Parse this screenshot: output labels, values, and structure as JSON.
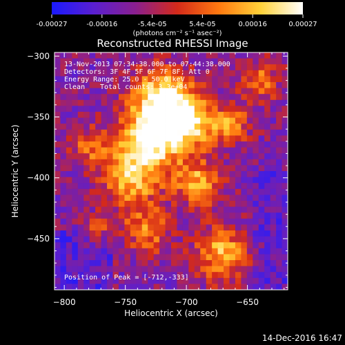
{
  "colorbar": {
    "ticks": [
      "-0.00027",
      "-0.00016",
      "-5.4e-05",
      "5.4e-05",
      "0.00016",
      "0.00027"
    ],
    "units": "(photons cm⁻² s⁻¹ asec⁻²)",
    "stops": [
      "#1a1aff",
      "#5a1fd0",
      "#8a1f8f",
      "#d42a1a",
      "#ff7a10",
      "#ffd23a",
      "#ffffff"
    ]
  },
  "title": "Reconstructed RHESSI Image",
  "info": {
    "time_range": "13-Nov-2013 07:34:38.000 to 07:44:38.000",
    "detectors": "Detectors: 3F 4F 5F 6F 7F 8F; Att 0",
    "energy": "Energy Range: 25.0 - 50.0 keV",
    "algorithm": "Clean",
    "counts": "Total counts: 3.3e+04",
    "peak": "Position of Peak = [-712,-333]"
  },
  "footer": {
    "date": "14-Dec-2016 16:47"
  },
  "chart_data": {
    "type": "heatmap",
    "title": "Reconstructed RHESSI Image",
    "xlabel": "Heliocentric X (arcsec)",
    "ylabel": "Heliocentric Y (arcsec)",
    "xlim": [
      -808,
      -617
    ],
    "ylim": [
      -492,
      -297
    ],
    "xticks": [
      -800,
      -750,
      -700,
      -650
    ],
    "yticks": [
      -300,
      -350,
      -400,
      -450
    ],
    "xtick_labels": [
      "−800",
      "−750",
      "−700",
      "−650"
    ],
    "ytick_labels": [
      "−300",
      "−350",
      "−400",
      "−450"
    ],
    "colorbar_range": [
      -0.00027,
      0.00027
    ],
    "peak_position": [
      -712,
      -333
    ],
    "grid": false
  }
}
